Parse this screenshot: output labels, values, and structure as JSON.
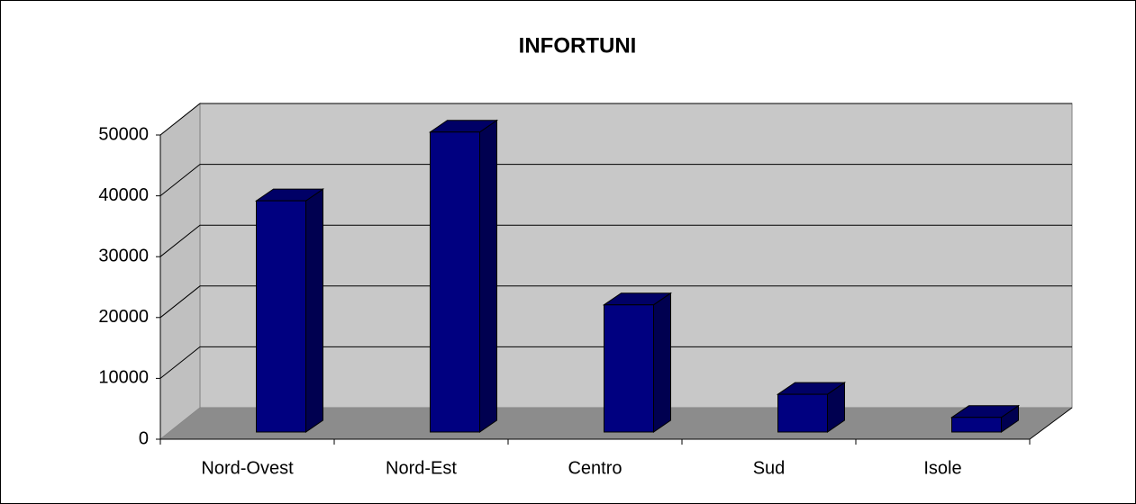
{
  "chart_data": {
    "type": "bar3d",
    "title": "INFORTUNI",
    "categories": [
      "Nord-Ovest",
      "Nord-Est",
      "Centro",
      "Sud",
      "Isole"
    ],
    "values": [
      38000,
      49300,
      20900,
      6200,
      2400
    ],
    "color": "#000080",
    "ylim": [
      0,
      50000
    ],
    "yticks": [
      0,
      10000,
      20000,
      30000,
      40000,
      50000
    ],
    "grid": true
  }
}
